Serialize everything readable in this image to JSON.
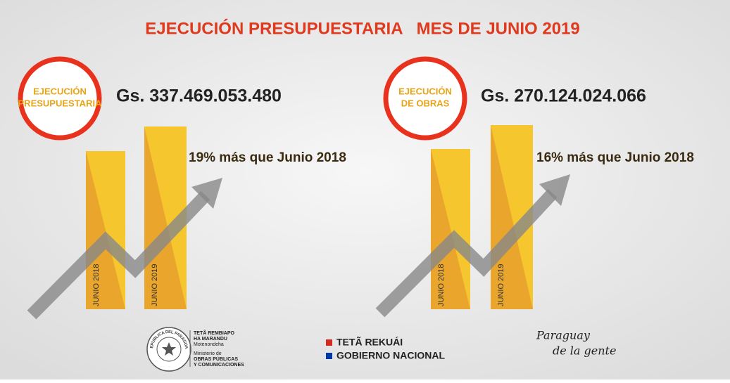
{
  "title": "EJECUCIÓN PRESUPUESTARIA   MES DE JUNIO 2019",
  "panels": [
    {
      "badge": [
        "EJECUCIÓN",
        "PRESUPUESTARIA"
      ],
      "amount": "Gs. 337.469.053.480",
      "note": "19% más que Junio 2018",
      "bar_labels": [
        "JUNIO 2018",
        "JUNIO 2019"
      ]
    },
    {
      "badge": [
        "EJECUCIÓN",
        "DE OBRAS"
      ],
      "amount": "Gs. 270.124.024.066",
      "note": "16% más que Junio 2018",
      "bar_labels": [
        "JUNIO 2018",
        "JUNIO 2019"
      ]
    }
  ],
  "footer": {
    "seal": "REPUBLICA DEL PARAGUAY",
    "ministry": [
      "TETÃ REMBIAPO",
      "HA MARANDU",
      "Motenondeha",
      "Ministerio de",
      "OBRAS PÚBLICAS",
      "Y COMUNICACIONES"
    ],
    "government": [
      "TETÃ REKUÁI",
      "GOBIERNO NACIONAL"
    ],
    "slogan": [
      "Paraguay",
      "de la gente"
    ]
  }
}
